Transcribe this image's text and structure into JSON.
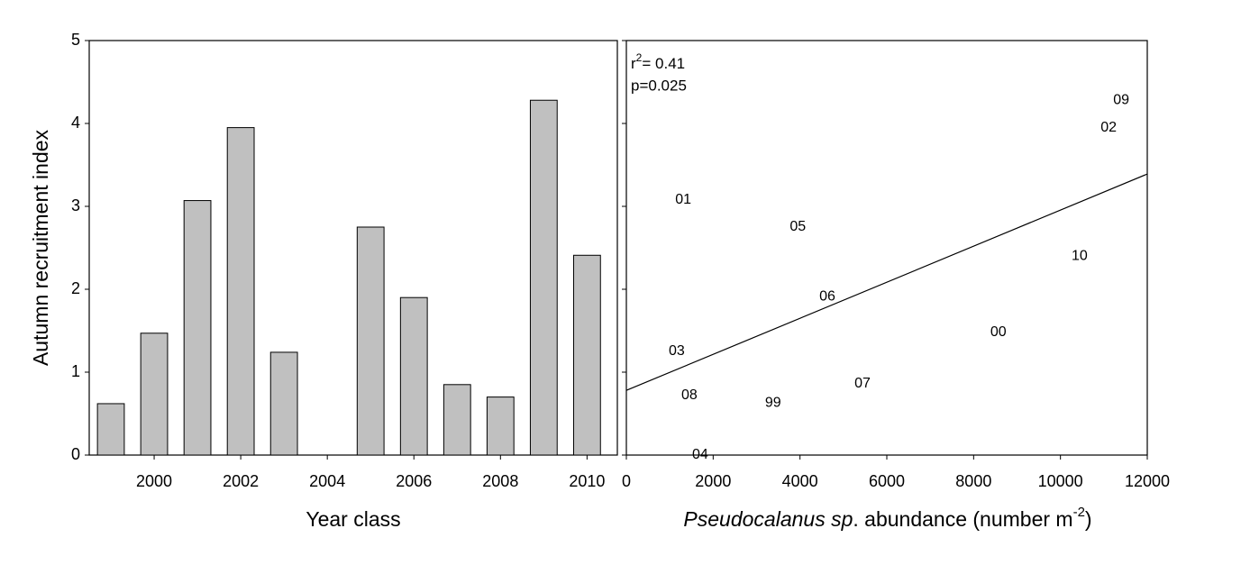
{
  "chart_data": [
    {
      "type": "bar",
      "x": [
        1999,
        2000,
        2001,
        2002,
        2003,
        2004,
        2005,
        2006,
        2007,
        2008,
        2009,
        2010
      ],
      "values": [
        0.62,
        1.47,
        3.07,
        3.95,
        1.24,
        0,
        2.75,
        1.9,
        0.85,
        0.7,
        4.28,
        2.41
      ],
      "color": "#c0c0c0",
      "xlim": [
        1998.5,
        2010.7
      ],
      "xticks": [
        2000,
        2002,
        2004,
        2006,
        2008,
        2010
      ],
      "ylim": [
        0,
        5
      ],
      "yticks": [
        0,
        1,
        2,
        3,
        4,
        5
      ],
      "xlabel": "Year class",
      "ylabel": "Autumn recruitment index"
    },
    {
      "type": "scatter",
      "point_labels": [
        "99",
        "00",
        "01",
        "02",
        "03",
        "04",
        "05",
        "06",
        "07",
        "08",
        "09",
        "10"
      ],
      "x": [
        3380,
        8570,
        1310,
        11110,
        1160,
        1700,
        3950,
        4630,
        5440,
        1450,
        11400,
        10440
      ],
      "y": [
        0.63,
        1.48,
        3.08,
        3.95,
        1.25,
        0,
        2.75,
        1.91,
        0.86,
        0.72,
        4.28,
        2.4
      ],
      "fit_line": {
        "x": [
          0,
          12000
        ],
        "y": [
          0.78,
          3.39
        ]
      },
      "xlim": [
        0,
        12000
      ],
      "xticks": [
        0,
        2000,
        4000,
        6000,
        8000,
        10000,
        12000
      ],
      "ylim": [
        0,
        5
      ],
      "yticks": [
        0,
        1,
        2,
        3,
        4,
        5
      ],
      "xlabel": {
        "italic": "Pseudocalanus sp",
        "text": ". abundance (number m",
        "sup": "-2",
        "end": ")"
      },
      "annotation": {
        "r": "r",
        "r_sup": "2",
        "r_text": "= 0.41",
        "p": "p=0.025"
      }
    }
  ]
}
